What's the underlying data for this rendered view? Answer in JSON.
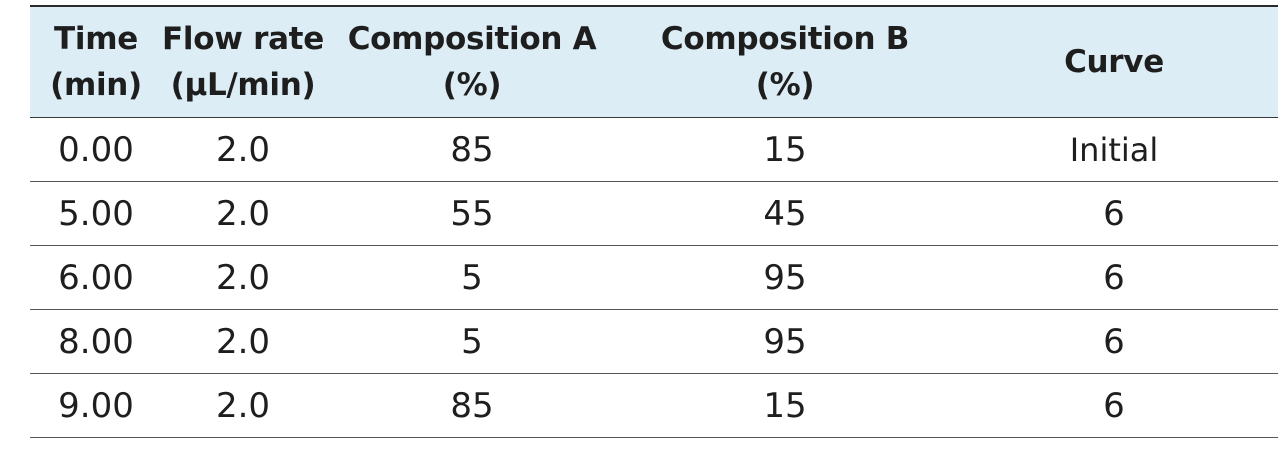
{
  "table": {
    "headers": [
      {
        "line1": "Time",
        "line2": "(min)"
      },
      {
        "line1": "Flow rate",
        "line2": "(µL/min)"
      },
      {
        "line1": "Composition A",
        "line2": "(%)"
      },
      {
        "line1": "Composition B",
        "line2": "(%)"
      },
      {
        "line1": "Curve",
        "line2": ""
      }
    ],
    "rows": [
      [
        "0.00",
        "2.0",
        "85",
        "15",
        "Initial"
      ],
      [
        "5.00",
        "2.0",
        "55",
        "45",
        "6"
      ],
      [
        "6.00",
        "2.0",
        "5",
        "95",
        "6"
      ],
      [
        "8.00",
        "2.0",
        "5",
        "95",
        "6"
      ],
      [
        "9.00",
        "2.0",
        "85",
        "15",
        "6"
      ]
    ]
  },
  "colors": {
    "header_background": "#dcedf5",
    "text": "#1e1e1e",
    "rule": "#2b2b2b"
  }
}
